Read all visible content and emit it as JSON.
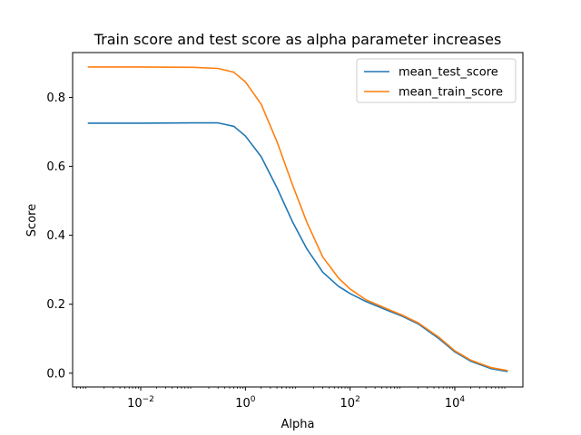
{
  "chart_data": {
    "type": "line",
    "title": "Train score and test score as alpha parameter increases",
    "xlabel": "Alpha",
    "ylabel": "Score",
    "xscale": "log",
    "xlim": [
      0.0005,
      200000
    ],
    "ylim": [
      -0.04,
      0.93
    ],
    "xticks": [
      {
        "value": 0.01,
        "base": "10",
        "exp": "−2"
      },
      {
        "value": 1,
        "base": "10",
        "exp": "0"
      },
      {
        "value": 100,
        "base": "10",
        "exp": "2"
      },
      {
        "value": 10000,
        "base": "10",
        "exp": "4"
      }
    ],
    "yticks": [
      {
        "value": 0.0,
        "label": "0.0"
      },
      {
        "value": 0.2,
        "label": "0.2"
      },
      {
        "value": 0.4,
        "label": "0.4"
      },
      {
        "value": 0.6,
        "label": "0.6"
      },
      {
        "value": 0.8,
        "label": "0.8"
      }
    ],
    "grid": false,
    "legend_position": "top-right",
    "x": [
      0.001,
      0.01,
      0.1,
      0.3,
      0.6,
      1,
      2,
      4,
      8,
      15,
      30,
      60,
      100,
      200,
      500,
      1000,
      2000,
      5000,
      10000,
      20000,
      50000,
      100000
    ],
    "series": [
      {
        "name": "mean_test_score",
        "color": "#1f77b4",
        "values": [
          0.725,
          0.725,
          0.726,
          0.726,
          0.716,
          0.688,
          0.628,
          0.538,
          0.438,
          0.36,
          0.293,
          0.252,
          0.231,
          0.208,
          0.183,
          0.165,
          0.143,
          0.1,
          0.062,
          0.035,
          0.013,
          0.005
        ]
      },
      {
        "name": "mean_train_score",
        "color": "#ff7f0e",
        "values": [
          0.888,
          0.888,
          0.887,
          0.884,
          0.873,
          0.845,
          0.78,
          0.672,
          0.545,
          0.437,
          0.337,
          0.276,
          0.244,
          0.213,
          0.187,
          0.168,
          0.146,
          0.104,
          0.065,
          0.038,
          0.016,
          0.008
        ]
      }
    ]
  }
}
